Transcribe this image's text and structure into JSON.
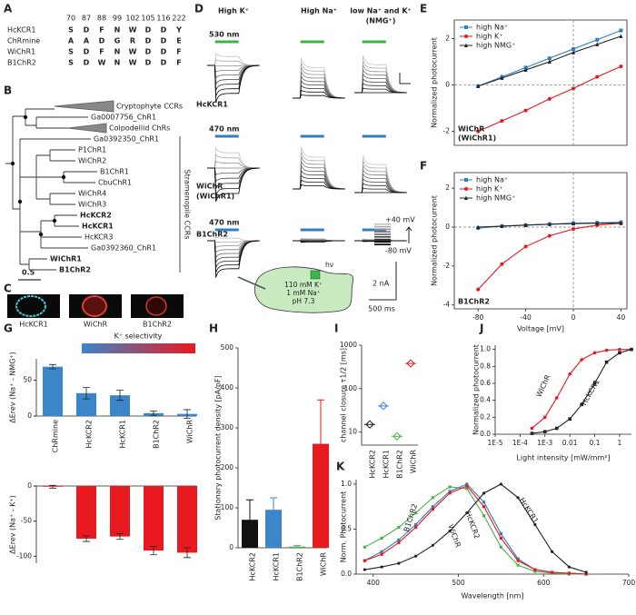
{
  "panels": {
    "A": {
      "label": "A",
      "positions": [
        70,
        87,
        88,
        99,
        102,
        105,
        116,
        222
      ],
      "rows": [
        {
          "name": "HcKCR1",
          "color": "#d0202a",
          "residues": [
            "S",
            "D",
            "F",
            "N",
            "W",
            "D",
            "D",
            "Y"
          ]
        },
        {
          "name": "ChRmine",
          "color": "#222222",
          "residues": [
            "A",
            "A",
            "D",
            "G",
            "R",
            "D",
            "D",
            "E"
          ]
        },
        {
          "name": "WiChR1",
          "color": "#d0202a",
          "residues": [
            "S",
            "D",
            "F",
            "N",
            "W",
            "D",
            "D",
            "F"
          ]
        },
        {
          "name": "B1ChR2",
          "color": "#d0202a",
          "residues": [
            "S",
            "D",
            "W",
            "N",
            "W",
            "D",
            "D",
            "F"
          ]
        }
      ]
    },
    "B": {
      "label": "B",
      "leaves": [
        {
          "name": "Cryptophyte CCRs",
          "bold": false
        },
        {
          "name": "Ga0007756_ChR1",
          "bold": false
        },
        {
          "name": "Colpodellid ChRs",
          "bold": false
        },
        {
          "name": "Ga0392350_ChR1",
          "bold": false
        },
        {
          "name": "P1ChR1",
          "bold": false
        },
        {
          "name": "WiChR2",
          "bold": false
        },
        {
          "name": "B1ChR1",
          "bold": false
        },
        {
          "name": "CbuChR1",
          "bold": false
        },
        {
          "name": "WiChR4",
          "bold": false
        },
        {
          "name": "WiChR3",
          "bold": false
        },
        {
          "name": "HcKCR2",
          "bold": true
        },
        {
          "name": "HcKCR1",
          "bold": true
        },
        {
          "name": "HcKCR3",
          "bold": false
        },
        {
          "name": "Ga0392360_ChR1",
          "bold": false
        },
        {
          "name": "WiChR1",
          "bold": true
        },
        {
          "name": "B1ChR2",
          "bold": true
        }
      ],
      "clade": "Stramenopile CCRs",
      "scale": "0.5"
    },
    "C": {
      "label": "C",
      "images": [
        "HcKCR1",
        "WiChR",
        "B1ChR2"
      ]
    },
    "D": {
      "label": "D",
      "conditions": [
        {
          "lines": [
            "High K⁺"
          ],
          "color": "#e8191f"
        },
        {
          "lines": [
            "High Na⁺"
          ],
          "color": "#2f7fc1"
        },
        {
          "lines": [
            "low Na⁺ and K⁺",
            "(NMG⁺)"
          ],
          "color": "#222222"
        }
      ],
      "rows": [
        {
          "name": [
            "HcKCR1"
          ],
          "light": "530 nm",
          "light_color": "#3cb44b"
        },
        {
          "name": [
            "WiChR",
            "(WiChR1)"
          ],
          "light": "470 nm",
          "light_color": "#2f7fc1"
        },
        {
          "name": [
            "B1ChR2"
          ],
          "light": "470 nm",
          "light_color": "#2f7fc1"
        }
      ],
      "voltage_top": "+40 mV",
      "voltage_bottom": "-80 mV",
      "scale_current": "2 nA",
      "scale_time": "500 ms",
      "inset": [
        "110 mM K⁺",
        "1 mM Na⁺",
        "pH 7.3"
      ],
      "hv": "hν"
    },
    "E": {
      "label": "E",
      "ylabel": "Normalized photocurrent",
      "tag": [
        "WiChR",
        "(WiChR1)"
      ],
      "x": [
        -80,
        -60,
        -40,
        -20,
        0,
        20,
        40
      ],
      "xlim": [
        -100,
        45
      ],
      "ylim": [
        -2.6,
        2.8
      ],
      "yticks": [
        -2,
        0,
        2
      ],
      "series": [
        {
          "name": "high Na⁺",
          "color": "#2f7fc1",
          "values": [
            -0.05,
            0.35,
            0.75,
            1.15,
            1.55,
            1.95,
            2.35
          ]
        },
        {
          "name": "high K⁺",
          "color": "#e8191f",
          "values": [
            -2,
            -1.55,
            -1.1,
            -0.6,
            -0.15,
            0.35,
            0.8
          ]
        },
        {
          "name": "high NMG⁺",
          "color": "#222222",
          "values": [
            -0.05,
            0.3,
            0.65,
            1,
            1.4,
            1.75,
            2.1
          ]
        }
      ]
    },
    "F": {
      "label": "F",
      "ylabel": "Normalized photocurrent",
      "xlabel": "Voltage [mV]",
      "tag": [
        "B1ChR2"
      ],
      "x": [
        -80,
        -60,
        -40,
        -20,
        0,
        20,
        40
      ],
      "xlim": [
        -100,
        45
      ],
      "xticks": [
        -80,
        -40,
        0,
        40
      ],
      "ylim": [
        -4.2,
        2.8
      ],
      "yticks": [
        -4,
        -2,
        0,
        2
      ],
      "series": [
        {
          "name": "high Na⁺",
          "color": "#2f7fc1",
          "values": [
            -0.05,
            0.05,
            0.1,
            0.15,
            0.2,
            0.22,
            0.25
          ]
        },
        {
          "name": "high K⁺",
          "color": "#e8191f",
          "values": [
            -3.2,
            -1.9,
            -1,
            -0.45,
            -0.1,
            0.1,
            0.2
          ]
        },
        {
          "name": "high NMG⁺",
          "color": "#222222",
          "values": [
            0,
            0.05,
            0.1,
            0.15,
            0.18,
            0.2,
            0.2
          ]
        }
      ]
    },
    "G": {
      "label": "G",
      "title": "K⁺ selectivity",
      "categories": [
        "ChRmine",
        "HcKCR2",
        "HcKCR1",
        "B1ChR2",
        "WiChR"
      ],
      "top": {
        "ylabel": "ΔErev (Na⁺ - NMG⁺)",
        "ylim": [
          0,
          80
        ],
        "yticks": [
          0,
          50
        ],
        "values": [
          69,
          32,
          29,
          4,
          3
        ],
        "errors": [
          3,
          8,
          7,
          3,
          6
        ],
        "color": "#3a86c8"
      },
      "bottom": {
        "ylabel": "ΔErev (Na⁺ - K⁺)",
        "ylim": [
          -110,
          0
        ],
        "yticks": [
          -100,
          -50,
          0
        ],
        "values": [
          -1,
          -75,
          -72,
          -92,
          -95
        ],
        "errors": [
          2,
          4,
          4,
          6,
          7
        ],
        "color": "#e8191f"
      }
    },
    "H": {
      "label": "H",
      "ylabel": "Stationary photocurrent density [pA/pF]",
      "categories": [
        "HcKCR2",
        "HcKCR1",
        "B1ChR2",
        "WiChR"
      ],
      "values": [
        70,
        95,
        3,
        260
      ],
      "errors": [
        50,
        30,
        3,
        110
      ],
      "colors": [
        "#111111",
        "#3a86c8",
        "#4caf50",
        "#e8191f"
      ],
      "ylim": [
        0,
        500
      ],
      "yticks": [
        0,
        100,
        200,
        300,
        400,
        500
      ]
    },
    "I": {
      "label": "I",
      "ylabel": "channel closure τ1/2 [ms]",
      "categories": [
        "HcKCR2",
        "HcKCR1",
        "B1ChR2",
        "WiChR"
      ],
      "values": [
        15,
        40,
        8,
        380
      ],
      "colors": [
        "#111111",
        "#3a86c8",
        "#4caf50",
        "#e8191f"
      ],
      "ylog": true,
      "ylim": [
        5,
        1000
      ],
      "yticks": [
        10,
        100,
        1000
      ]
    },
    "J": {
      "label": "J",
      "xlabel": "Light intensity [mW/mm²]",
      "ylabel": "Normalized photocurrent",
      "xlog": true,
      "xlim": [
        1e-05,
        3
      ],
      "xticks": [
        {
          "value": 1e-05,
          "label": "1E-5"
        },
        {
          "value": 0.0001,
          "label": "1E-4"
        },
        {
          "value": 0.001,
          "label": "1E-3"
        },
        0.01,
        0.1,
        1
      ],
      "ylim": [
        0,
        1.05
      ],
      "yticks": [
        {
          "value": 0,
          "label": "0.0"
        },
        0.2,
        0.4,
        0.6,
        0.8,
        {
          "value": 1,
          "label": "1.0"
        }
      ],
      "x": [
        0.0003,
        0.001,
        0.003,
        0.01,
        0.03,
        0.1,
        0.3,
        1,
        3
      ],
      "series": [
        {
          "name": "WiChR",
          "color": "#e8191f",
          "values": [
            0.07,
            0.2,
            0.43,
            0.71,
            0.88,
            0.96,
            0.99,
            1,
            1
          ]
        },
        {
          "name": "HcKCR1",
          "color": "#222222",
          "values": [
            0.01,
            0.03,
            0.07,
            0.18,
            0.35,
            0.6,
            0.85,
            0.96,
            1
          ]
        }
      ]
    },
    "K": {
      "label": "K",
      "xlabel": "Wavelength [nm]",
      "ylabel": "Norm. Photocurrent",
      "xlim": [
        380,
        700
      ],
      "xticks": [
        400,
        500,
        600,
        700
      ],
      "ylim": [
        0,
        1.05
      ],
      "yticks": [
        {
          "value": 0,
          "label": "0.0"
        },
        0.5,
        {
          "value": 1,
          "label": "1.0"
        }
      ],
      "x": [
        390,
        410,
        430,
        450,
        470,
        490,
        510,
        530,
        550,
        570,
        590,
        610,
        630,
        650
      ],
      "series": [
        {
          "name": "B1ChR2",
          "color": "#4caf50",
          "values": [
            0.3,
            0.4,
            0.52,
            0.68,
            0.85,
            0.97,
            0.95,
            0.65,
            0.3,
            0.1,
            0.03,
            0.01,
            0,
            0
          ]
        },
        {
          "name": "HcKCR2",
          "color": "#2f7fc1",
          "values": [
            0.15,
            0.25,
            0.38,
            0.55,
            0.75,
            0.92,
            1,
            0.8,
            0.45,
            0.17,
            0.05,
            0.02,
            0.01,
            0
          ]
        },
        {
          "name": "WiChR",
          "color": "#e8191f",
          "values": [
            0.15,
            0.22,
            0.35,
            0.52,
            0.72,
            0.9,
            0.98,
            0.75,
            0.4,
            0.15,
            0.05,
            0.02,
            0.01,
            0
          ]
        },
        {
          "name": "HcKCR1",
          "color": "#222222",
          "values": [
            0.05,
            0.08,
            0.12,
            0.2,
            0.32,
            0.48,
            0.68,
            0.9,
            1,
            0.85,
            0.55,
            0.25,
            0.08,
            0.02
          ]
        }
      ]
    }
  }
}
